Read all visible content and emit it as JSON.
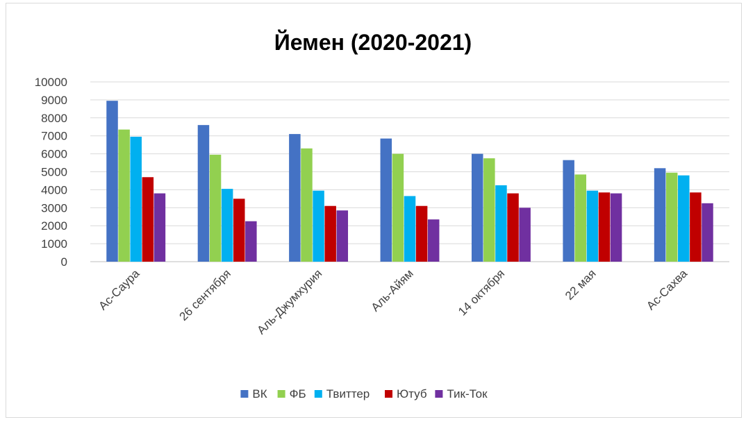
{
  "chart_data": {
    "type": "bar",
    "title": "Йемен (2020-2021)",
    "xlabel": "",
    "ylabel": "",
    "ylim": [
      0,
      10000
    ],
    "yticks": [
      0,
      1000,
      2000,
      3000,
      4000,
      5000,
      6000,
      7000,
      8000,
      9000,
      10000
    ],
    "grid": true,
    "legend_position": "bottom",
    "categories": [
      "Ас-Саура",
      "26 сентября",
      "Аль-Джумхурия",
      "Аль-Айям",
      "14 октября",
      "22 мая",
      "Ас-Сахва"
    ],
    "series": [
      {
        "name": "ВК",
        "color": "#4472C4",
        "values": [
          8950,
          7600,
          7100,
          6850,
          6000,
          5650,
          5200
        ]
      },
      {
        "name": "ФБ",
        "color": "#92D050",
        "values": [
          7350,
          5950,
          6300,
          6000,
          5750,
          4850,
          4950
        ]
      },
      {
        "name": "Твиттер",
        "color": "#00B0F0",
        "values": [
          6950,
          4050,
          3950,
          3650,
          4250,
          3950,
          4800
        ]
      },
      {
        "name": "Ютуб",
        "color": "#C00000",
        "values": [
          4700,
          3500,
          3100,
          3100,
          3800,
          3850,
          3850
        ]
      },
      {
        "name": "Тик-Ток",
        "color": "#7030A0",
        "values": [
          3800,
          2250,
          2850,
          2350,
          3000,
          3800,
          3250
        ]
      }
    ]
  }
}
